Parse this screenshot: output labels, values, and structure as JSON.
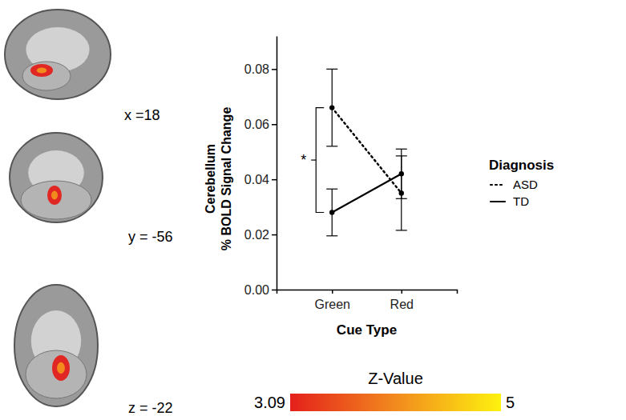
{
  "chart_data": {
    "type": "line",
    "x_label": "Cue Type",
    "y_label": "Cerebellum\n% BOLD Signal Change",
    "categories": [
      "Green",
      "Red"
    ],
    "series": [
      {
        "name": "ASD",
        "color": "#000000",
        "line_style": "dotted",
        "marker": "circle",
        "values": [
          0.066,
          0.035
        ],
        "errors": [
          0.014,
          0.0135
        ]
      },
      {
        "name": "TD",
        "color": "#000000",
        "line_style": "solid",
        "marker": "circle",
        "values": [
          0.028,
          0.042
        ],
        "errors": [
          0.0085,
          0.009
        ]
      }
    ],
    "ylim": [
      0,
      0.092
    ],
    "yticks": [
      {
        "value": 0,
        "label": "0.00"
      },
      0.02,
      0.04,
      0.06,
      0.08
    ],
    "legend": "right",
    "legend_title": "Diagnosis",
    "grid": false,
    "annotations": [
      {
        "text": "*",
        "category": 0,
        "between": [
          0,
          1
        ]
      }
    ]
  },
  "brain_slices": {
    "labels": [
      "x =18",
      "y = -56",
      "z = -22"
    ],
    "colorbar": {
      "title": "Z-Value",
      "range": [
        3.09,
        5
      ],
      "ticks": [
        3.09,
        5
      ],
      "colors": [
        "#e4201b",
        "#f28a1e",
        "#fdf20f"
      ]
    }
  }
}
